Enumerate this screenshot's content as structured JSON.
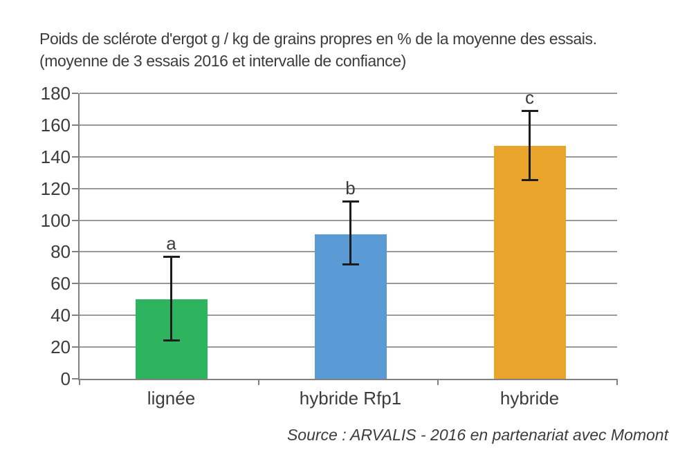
{
  "header": {
    "title_line1": "Poids de sclérote d'ergot g / kg de grains propres en % de la moyenne des essais.",
    "title_line2": "(moyenne de 3 essais 2016 et intervalle de confiance)"
  },
  "footer": {
    "source": "Source : ARVALIS  - 2016 en partenariat avec Momont"
  },
  "colors": {
    "grid": "#999999",
    "axis": "#808080",
    "text": "#3c3c3c",
    "error_bar": "#1c1c1c"
  },
  "chart_data": {
    "type": "bar",
    "title": "Poids de sclérote d'ergot g / kg de grains propres en % de la moyenne des essais.",
    "subtitle": "(moyenne de 3 essais 2016 et intervalle de confiance)",
    "categories": [
      "lignée",
      "hybride Rfp1",
      "hybride"
    ],
    "values": [
      50,
      91,
      147
    ],
    "error_bars": {
      "low": [
        24,
        72,
        125
      ],
      "high": [
        77,
        112,
        169
      ]
    },
    "significance_letters": [
      "a",
      "b",
      "c"
    ],
    "bar_colors": [
      "#2eb45f",
      "#5b9bd5",
      "#e9a52b"
    ],
    "xlabel": "",
    "ylabel": "",
    "ylim": [
      0,
      180
    ],
    "ytick_step": 20,
    "grid": true,
    "legend_position": "none"
  }
}
